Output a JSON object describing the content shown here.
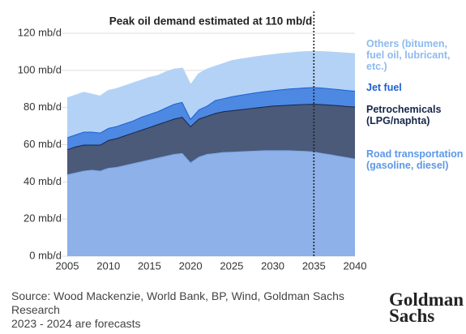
{
  "chart_data": {
    "type": "stacked_area",
    "annotation": {
      "text": "Peak oil demand estimated at 110 mb/d",
      "x": 2035
    },
    "x": [
      2005,
      2006,
      2007,
      2008,
      2009,
      2010,
      2011,
      2012,
      2013,
      2014,
      2015,
      2016,
      2017,
      2018,
      2019,
      2020,
      2021,
      2022,
      2023,
      2024,
      2025,
      2026,
      2027,
      2028,
      2029,
      2030,
      2031,
      2032,
      2033,
      2034,
      2035,
      2036,
      2037,
      2038,
      2039,
      2040
    ],
    "series": [
      {
        "name": "Road transportation (gasoline, diesel)",
        "color": "#8db1e8",
        "line_color": "#7aa6ea",
        "label_color": "#5c97e8",
        "values": [
          44,
          45,
          46,
          46.5,
          46,
          47.5,
          48,
          49,
          50,
          51,
          52,
          53,
          54,
          55,
          55.5,
          50.5,
          53.5,
          55,
          55.5,
          56,
          56.2,
          56.4,
          56.6,
          56.8,
          57,
          57,
          57,
          57,
          56.8,
          56.6,
          56.3,
          55.5,
          54.8,
          54,
          53.3,
          52.5
        ]
      },
      {
        "name": "Petrochemicals (LPG/naphta)",
        "color": "#4b5a78",
        "line_color": "#16264a",
        "label_color": "#16264a",
        "values": [
          13.5,
          14,
          14,
          13.5,
          14,
          15,
          15.5,
          16,
          16.5,
          17,
          17.5,
          18,
          18.5,
          19,
          19.5,
          19.5,
          20.5,
          20.5,
          21.5,
          22,
          22.3,
          22.6,
          22.9,
          23.2,
          23.5,
          24,
          24.2,
          24.5,
          24.9,
          25.3,
          25.7,
          26.3,
          26.7,
          27.2,
          27.5,
          28
        ]
      },
      {
        "name": "Jet fuel",
        "color": "#4d88e2",
        "line_color": "#1e5fd2",
        "label_color": "#1e5fd2",
        "values": [
          6.5,
          6.5,
          7,
          7,
          6.5,
          6.5,
          6.5,
          6.5,
          6.5,
          7,
          7,
          7,
          7.5,
          8,
          8,
          4,
          5,
          5.5,
          7,
          7,
          7.5,
          7.8,
          8,
          8.2,
          8.3,
          8.3,
          8.6,
          8.7,
          8.8,
          8.9,
          9,
          8.9,
          8.8,
          8.7,
          8.6,
          8.5
        ]
      },
      {
        "name": "Others (bitumen, fuel oil, lubricant, etc.)",
        "color": "#b3d2f6",
        "line_color": "#b3d2f6",
        "label_color": "#8dbaf0",
        "values": [
          21,
          21,
          21,
          20,
          19.5,
          20,
          20,
          20,
          20,
          19.5,
          19.5,
          19,
          19,
          18.5,
          18,
          18,
          19,
          19.5,
          18,
          18.5,
          19,
          19,
          19,
          19,
          19,
          19,
          19,
          19,
          19.1,
          19.1,
          19,
          19.2,
          19.4,
          19.5,
          19.7,
          19.8
        ]
      }
    ],
    "xlim": [
      2005,
      2040
    ],
    "xticks": [
      2005,
      2010,
      2015,
      2020,
      2025,
      2030,
      2035,
      2040
    ],
    "ylim": [
      0,
      120
    ],
    "yticks": [
      {
        "value": 0,
        "label": "0 mb/d"
      },
      {
        "value": 20,
        "label": "20 mb/d"
      },
      {
        "value": 40,
        "label": "40 mb/d"
      },
      {
        "value": 60,
        "label": "60 mb/d"
      },
      {
        "value": 80,
        "label": "80 mb/d"
      },
      {
        "value": 100,
        "label": "100 mb/d"
      },
      {
        "value": 120,
        "label": "120 mb/d"
      }
    ],
    "grid": true
  },
  "footer": {
    "source": "Source: Wood Mackenzie, World Bank, BP, Wind, Goldman Sachs Research",
    "note": "2023 - 2024 are forecasts",
    "logo": [
      "Goldman",
      "Sachs"
    ]
  }
}
